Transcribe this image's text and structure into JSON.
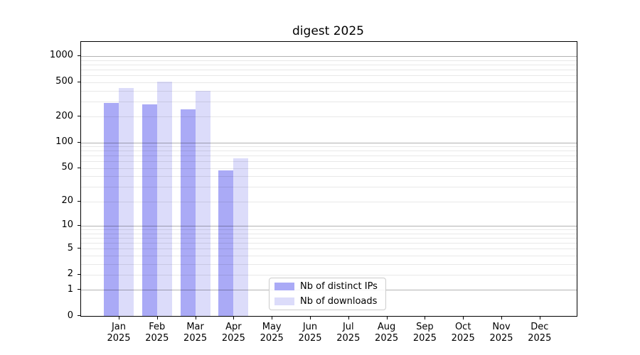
{
  "title": "digest 2025",
  "chart_data": {
    "type": "bar",
    "title": "digest 2025",
    "categories": [
      "Jan 2025",
      "Feb 2025",
      "Mar 2025",
      "Apr 2025",
      "May 2025",
      "Jun 2025",
      "Jul 2025",
      "Aug 2025",
      "Sep 2025",
      "Oct 2025",
      "Nov 2025",
      "Dec 2025"
    ],
    "series": [
      {
        "name": "Nb of distinct IPs",
        "color": "#aaaaf6",
        "values": [
          285,
          277,
          240,
          47,
          0,
          0,
          0,
          0,
          0,
          0,
          0,
          0
        ]
      },
      {
        "name": "Nb of downloads",
        "color": "#dcdcfa",
        "values": [
          430,
          505,
          400,
          65,
          0,
          0,
          0,
          0,
          0,
          0,
          0,
          0
        ]
      }
    ],
    "xlabel": "",
    "ylabel": "",
    "yscale": "log1p",
    "yticks": [
      0,
      1,
      2,
      5,
      10,
      20,
      50,
      100,
      200,
      500,
      1000
    ],
    "ylim": [
      0,
      1459
    ],
    "grid": "horizontal, major lines at powers of 10, light minor lines at 2-9 multiples",
    "legend_position": "lower center-right inside plot",
    "colors": {
      "major_grid": "rgba(0,0,0,0.30)",
      "minor_grid": "rgba(0,0,0,0.09)",
      "axis": "#000000",
      "legend_border": "#cccccc"
    }
  }
}
